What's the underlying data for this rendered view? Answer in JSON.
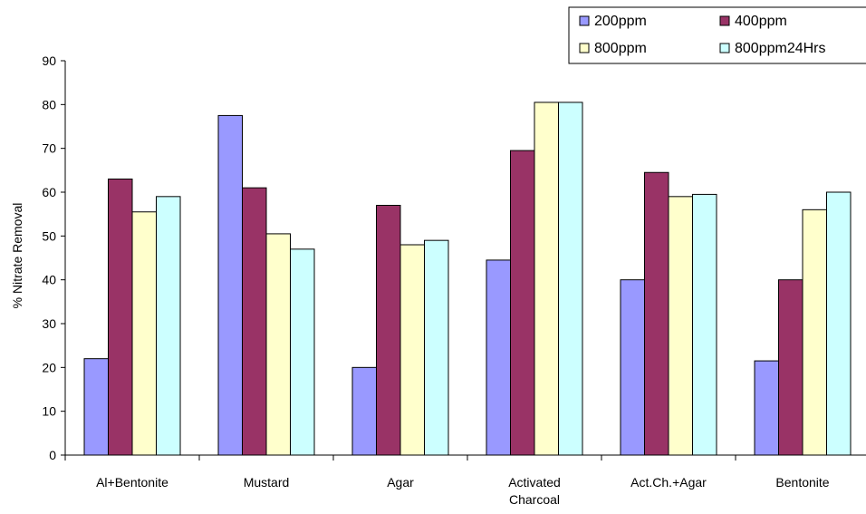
{
  "chart_data": {
    "type": "bar",
    "title": "",
    "xlabel": "",
    "ylabel": "% Nitrate Removal",
    "ylim": [
      0,
      90
    ],
    "yticks": [
      0,
      10,
      20,
      30,
      40,
      50,
      60,
      70,
      80,
      90
    ],
    "grid": false,
    "legend_position": "top-right",
    "categories": [
      [
        "Al+Bentonite"
      ],
      [
        "Mustard"
      ],
      [
        "Agar"
      ],
      [
        "Activated",
        "Charcoal"
      ],
      [
        "Act.Ch.+Agar"
      ],
      [
        "Bentonite"
      ]
    ],
    "series": [
      {
        "name": "200ppm",
        "color": "#9999FF",
        "values": [
          22,
          77.5,
          20,
          44.5,
          40,
          21.5
        ]
      },
      {
        "name": "400ppm",
        "color": "#993366",
        "values": [
          63,
          61,
          57,
          69.5,
          64.5,
          40
        ]
      },
      {
        "name": "800ppm",
        "color": "#FFFFCC",
        "values": [
          55.5,
          50.5,
          48,
          80.5,
          59,
          56
        ]
      },
      {
        "name": "800ppm24Hrs",
        "color": "#CCFFFF",
        "values": [
          59,
          47,
          49,
          80.5,
          59.5,
          60
        ]
      }
    ]
  }
}
